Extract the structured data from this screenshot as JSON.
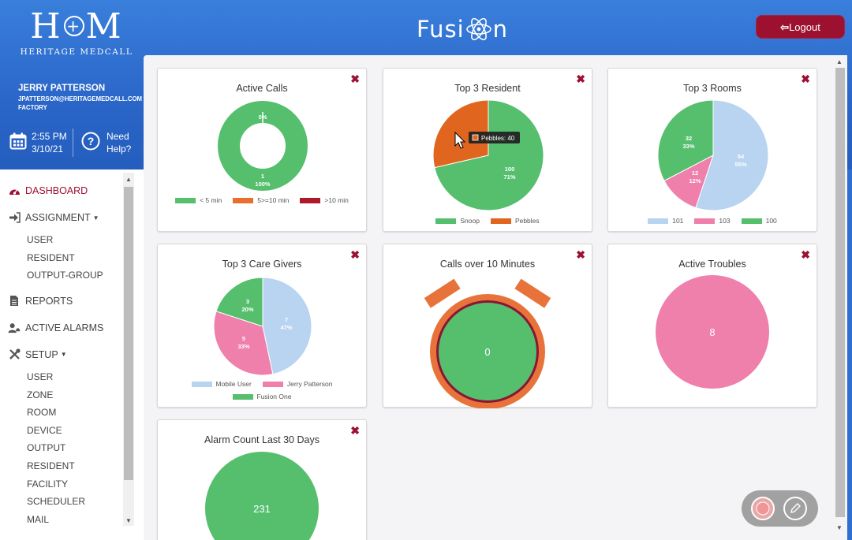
{
  "header": {
    "logo_mark_left": "H",
    "logo_mark_right": "M",
    "logo_sub": "HERITAGE MEDCALL",
    "brand_left": "Fusi",
    "brand_right": "n",
    "logout_label": "Logout",
    "accent": "#9c1030"
  },
  "user": {
    "name": "JERRY PATTERSON",
    "email": "JPATTERSON@HERITAGEMEDCALL.COM",
    "facility": "FACTORY",
    "time": "2:55 PM",
    "date": "3/10/21",
    "help_line1": "Need",
    "help_line2": "Help?"
  },
  "sidebar": {
    "items": [
      {
        "label": "DASHBOARD",
        "icon": "gauge-icon",
        "active": true
      },
      {
        "label": "ASSIGNMENT",
        "icon": "sign-in-icon",
        "subs": [
          "USER",
          "RESIDENT",
          "OUTPUT-GROUP"
        ]
      },
      {
        "label": "REPORTS",
        "icon": "file-icon"
      },
      {
        "label": "ACTIVE ALARMS",
        "icon": "user-bell-icon"
      },
      {
        "label": "SETUP",
        "icon": "tools-icon",
        "subs": [
          "USER",
          "ZONE",
          "ROOM",
          "DEVICE",
          "OUTPUT",
          "RESIDENT",
          "FACILITY",
          "SCHEDULER",
          "MAIL"
        ]
      }
    ]
  },
  "cards": {
    "active_calls": {
      "title": "Active Calls",
      "legend": [
        "< 5 min",
        "5>=10 min",
        ">10 min"
      ],
      "label_top": "0%",
      "label_bottom_1": "1",
      "label_bottom_2": "100%"
    },
    "top3_resident": {
      "title": "Top 3 Resident",
      "legend": [
        "Snoop",
        "Pebbles"
      ],
      "tooltip": "Pebbles: 40",
      "label_1": "100",
      "label_2": "71%"
    },
    "top3_rooms": {
      "title": "Top 3 Rooms",
      "legend": [
        "101",
        "103",
        "100"
      ],
      "labels": [
        [
          "54",
          "55%"
        ],
        [
          "12",
          "12%"
        ],
        [
          "32",
          "33%"
        ]
      ]
    },
    "top3_caregivers": {
      "title": "Top 3 Care Givers",
      "legend": [
        "Mobile User",
        "Jerry Patterson",
        "Fusion One"
      ],
      "labels": [
        [
          "7",
          "47%"
        ],
        [
          "5",
          "33%"
        ],
        [
          "3",
          "20%"
        ]
      ]
    },
    "calls_over_10": {
      "title": "Calls over 10 Minutes",
      "value": "0"
    },
    "active_troubles": {
      "title": "Active Troubles",
      "value": "8"
    },
    "alarm_count": {
      "title": "Alarm Count Last 30 Days",
      "value": "231"
    }
  },
  "chart_data": [
    {
      "type": "pie",
      "title": "Active Calls",
      "categories": [
        "< 5 min",
        "5>=10 min",
        ">10 min"
      ],
      "values": [
        1,
        0,
        0
      ],
      "colors": [
        "#55bf6e",
        "#e86f2c",
        "#b0182c"
      ],
      "donut": true
    },
    {
      "type": "pie",
      "title": "Top 3 Resident",
      "categories": [
        "Snoop",
        "Pebbles"
      ],
      "values": [
        100,
        40
      ],
      "colors": [
        "#55bf6e",
        "#e0661f"
      ]
    },
    {
      "type": "pie",
      "title": "Top 3 Rooms",
      "categories": [
        "101",
        "103",
        "100"
      ],
      "values": [
        54,
        12,
        32
      ],
      "colors": [
        "#b8d4f0",
        "#ef7fab",
        "#55bf6e"
      ]
    },
    {
      "type": "pie",
      "title": "Top 3 Care Givers",
      "categories": [
        "Mobile User",
        "Jerry Patterson",
        "Fusion One"
      ],
      "values": [
        7,
        5,
        3
      ],
      "colors": [
        "#b8d4f0",
        "#ef7fab",
        "#55bf6e"
      ]
    }
  ]
}
